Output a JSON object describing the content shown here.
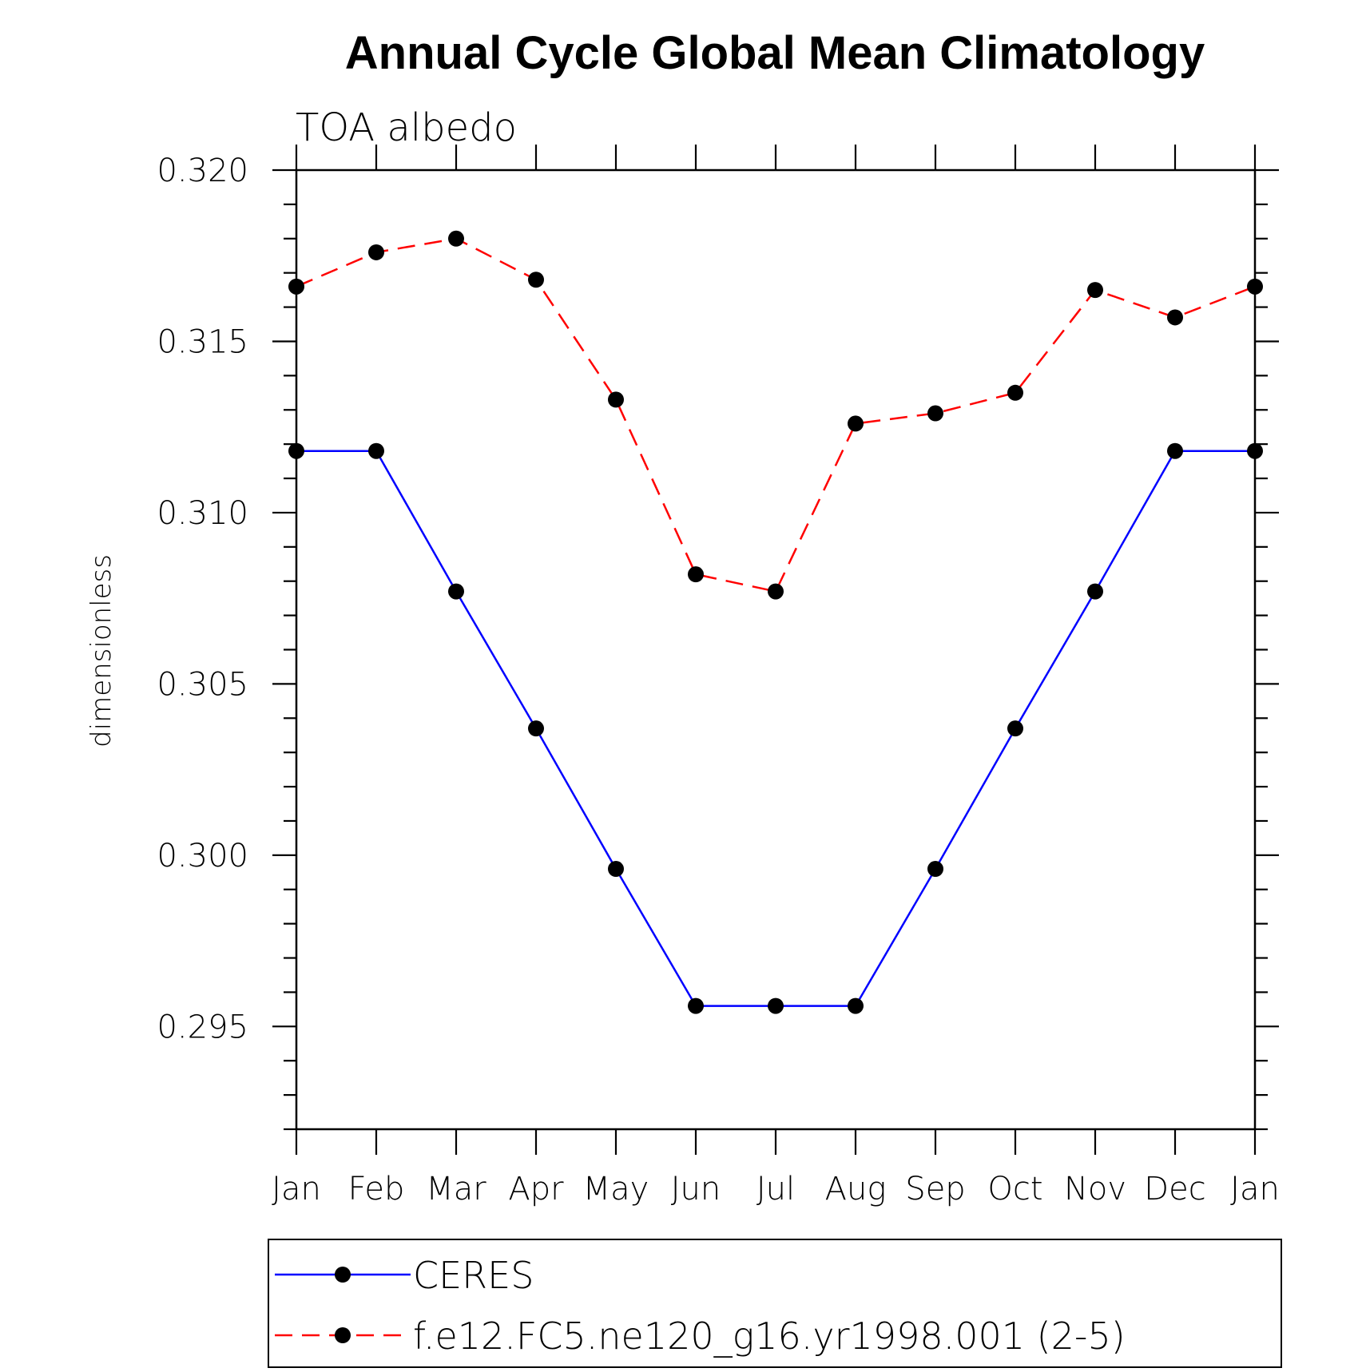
{
  "chart_data": {
    "type": "line",
    "title": "Annual Cycle Global Mean Climatology",
    "subtitle": "TOA albedo",
    "xlabel": "",
    "ylabel": "dimensionless",
    "categories": [
      "Jan",
      "Feb",
      "Mar",
      "Apr",
      "May",
      "Jun",
      "Jul",
      "Aug",
      "Sep",
      "Oct",
      "Nov",
      "Dec",
      "Jan"
    ],
    "ylim": [
      0.292,
      0.32
    ],
    "yticks": [
      "0.295",
      "0.300",
      "0.305",
      "0.310",
      "0.315",
      "0.320"
    ],
    "ytick_values": [
      0.295,
      0.3,
      0.305,
      0.31,
      0.315,
      0.32
    ],
    "grid": false,
    "legend_position": "bottom",
    "series": [
      {
        "name": "CERES",
        "color": "#0000ff",
        "line_style": "solid",
        "marker": "circle",
        "values": [
          0.3118,
          0.3118,
          0.3077,
          0.3037,
          0.2996,
          0.2956,
          0.2956,
          0.2956,
          0.2996,
          0.3037,
          0.3077,
          0.3118,
          0.3118
        ]
      },
      {
        "name": "f.e12.FC5.ne120_g16.yr1998.001 (2-5)",
        "color": "#ff0000",
        "line_style": "dashed",
        "marker": "circle",
        "values": [
          0.3166,
          0.3176,
          0.318,
          0.3168,
          0.3133,
          0.3082,
          0.3077,
          0.3126,
          0.3129,
          0.3135,
          0.3165,
          0.3157,
          0.3166
        ]
      }
    ]
  }
}
